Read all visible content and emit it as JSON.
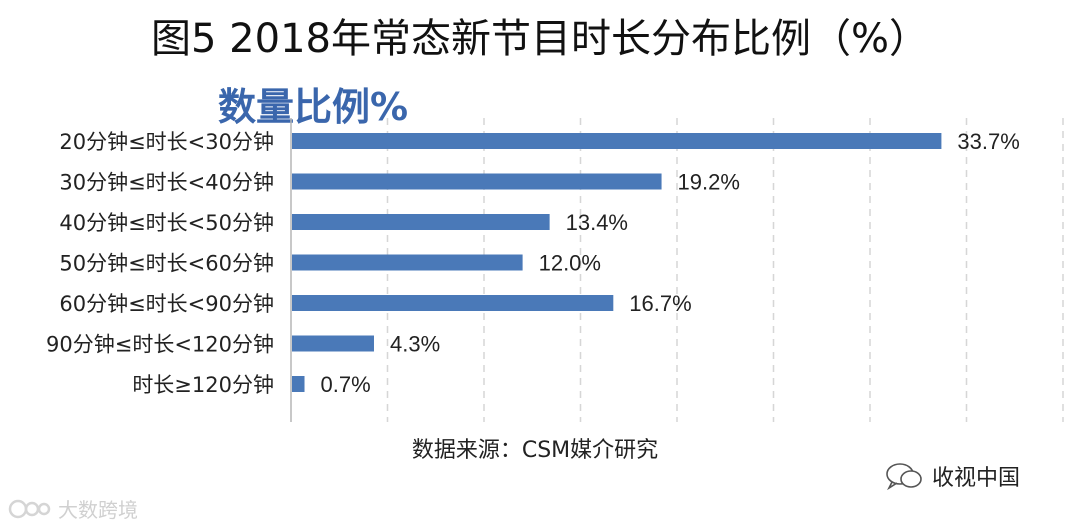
{
  "chart_data": {
    "type": "bar",
    "orientation": "horizontal",
    "title": "图5  2018年常态新节目时长分布比例（%）",
    "subtitle": "数量比例%",
    "categories": [
      "20分钟≤时长<30分钟",
      "30分钟≤时长<40分钟",
      "40分钟≤时长<50分钟",
      "50分钟≤时长<60分钟",
      "60分钟≤时长<90分钟",
      "90分钟≤时长<120分钟",
      "时长≥120分钟"
    ],
    "values": [
      33.7,
      19.2,
      13.4,
      12.0,
      16.7,
      4.3,
      0.7
    ],
    "value_labels": [
      "33.7%",
      "19.2%",
      "13.4%",
      "12.0%",
      "16.7%",
      "4.3%",
      "0.7%"
    ],
    "xlim": [
      0,
      40
    ],
    "grid": true,
    "bar_color": "#4a79b8"
  },
  "source": "数据来源：CSM媒介研究",
  "brand": "收视中国",
  "watermark": "大数跨境"
}
